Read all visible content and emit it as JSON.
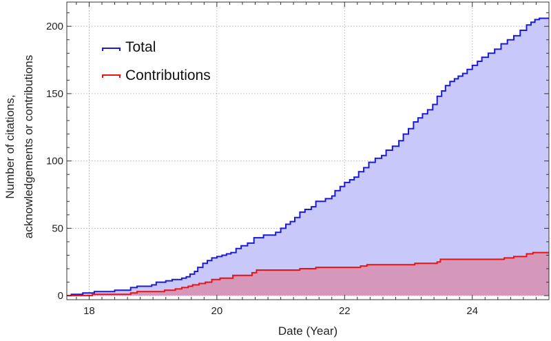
{
  "chart_data": {
    "type": "area",
    "xlabel": "Date (Year)",
    "ylabel": [
      "Number of citations,",
      "acknowledgements or contributions"
    ],
    "xlim": [
      17.65,
      25.2
    ],
    "ylim": [
      -3,
      218
    ],
    "x_ticks": [
      18,
      20,
      22,
      24
    ],
    "y_ticks": [
      0,
      50,
      100,
      150,
      200
    ],
    "grid": true,
    "legend_position": "top-left",
    "series": [
      {
        "name": "Total",
        "color": "#1a1ad6",
        "fill": "#c8c8fa",
        "points": [
          [
            17.65,
            0
          ],
          [
            17.72,
            1
          ],
          [
            17.9,
            2
          ],
          [
            18.08,
            3
          ],
          [
            18.4,
            4
          ],
          [
            18.65,
            6
          ],
          [
            18.75,
            7
          ],
          [
            18.98,
            8
          ],
          [
            19.05,
            10
          ],
          [
            19.2,
            11
          ],
          [
            19.3,
            12
          ],
          [
            19.45,
            13
          ],
          [
            19.52,
            14
          ],
          [
            19.58,
            16
          ],
          [
            19.65,
            18
          ],
          [
            19.7,
            21
          ],
          [
            19.78,
            24
          ],
          [
            19.85,
            26
          ],
          [
            19.92,
            28
          ],
          [
            20.0,
            29
          ],
          [
            20.08,
            30
          ],
          [
            20.15,
            31
          ],
          [
            20.22,
            32
          ],
          [
            20.3,
            35
          ],
          [
            20.38,
            37
          ],
          [
            20.48,
            39
          ],
          [
            20.58,
            43
          ],
          [
            20.73,
            45
          ],
          [
            20.92,
            47
          ],
          [
            21.0,
            50
          ],
          [
            21.08,
            53
          ],
          [
            21.15,
            55
          ],
          [
            21.22,
            58
          ],
          [
            21.3,
            62
          ],
          [
            21.38,
            64
          ],
          [
            21.48,
            66
          ],
          [
            21.55,
            70
          ],
          [
            21.7,
            72
          ],
          [
            21.8,
            74
          ],
          [
            21.85,
            78
          ],
          [
            21.93,
            81
          ],
          [
            22.0,
            84
          ],
          [
            22.08,
            86
          ],
          [
            22.15,
            88
          ],
          [
            22.22,
            92
          ],
          [
            22.3,
            95
          ],
          [
            22.38,
            99
          ],
          [
            22.48,
            102
          ],
          [
            22.58,
            104
          ],
          [
            22.65,
            108
          ],
          [
            22.75,
            111
          ],
          [
            22.85,
            115
          ],
          [
            22.92,
            120
          ],
          [
            23.0,
            124
          ],
          [
            23.08,
            129
          ],
          [
            23.15,
            132
          ],
          [
            23.22,
            135
          ],
          [
            23.3,
            138
          ],
          [
            23.38,
            142
          ],
          [
            23.45,
            148
          ],
          [
            23.52,
            152
          ],
          [
            23.58,
            156
          ],
          [
            23.65,
            159
          ],
          [
            23.72,
            161
          ],
          [
            23.78,
            163
          ],
          [
            23.85,
            165
          ],
          [
            23.92,
            168
          ],
          [
            24.0,
            171
          ],
          [
            24.08,
            174
          ],
          [
            24.15,
            177
          ],
          [
            24.25,
            180
          ],
          [
            24.35,
            183
          ],
          [
            24.45,
            187
          ],
          [
            24.55,
            190
          ],
          [
            24.65,
            193
          ],
          [
            24.75,
            197
          ],
          [
            24.85,
            201
          ],
          [
            24.92,
            203
          ],
          [
            24.98,
            205
          ],
          [
            25.05,
            206
          ]
        ]
      },
      {
        "name": "Contributions",
        "color": "#ee1111",
        "fill": "rgba(232,80,90,0.40)",
        "points": [
          [
            17.65,
            0
          ],
          [
            18.05,
            1
          ],
          [
            18.65,
            2
          ],
          [
            18.75,
            3
          ],
          [
            19.18,
            4
          ],
          [
            19.35,
            5
          ],
          [
            19.45,
            6
          ],
          [
            19.55,
            7
          ],
          [
            19.62,
            8
          ],
          [
            19.72,
            9
          ],
          [
            19.82,
            10
          ],
          [
            19.92,
            12
          ],
          [
            20.05,
            13
          ],
          [
            20.25,
            15
          ],
          [
            20.55,
            17
          ],
          [
            20.62,
            19
          ],
          [
            21.3,
            20
          ],
          [
            21.55,
            21
          ],
          [
            22.25,
            22
          ],
          [
            22.35,
            23
          ],
          [
            23.1,
            24
          ],
          [
            23.45,
            25
          ],
          [
            23.5,
            27
          ],
          [
            24.5,
            28
          ],
          [
            24.65,
            29
          ],
          [
            24.85,
            31
          ],
          [
            24.95,
            32
          ]
        ]
      }
    ]
  }
}
